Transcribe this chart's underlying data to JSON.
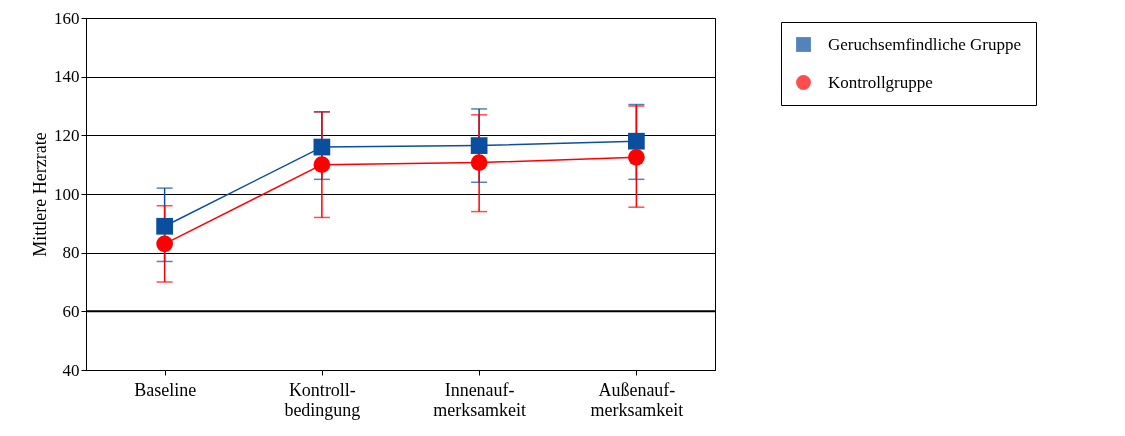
{
  "chart_data": {
    "type": "line",
    "ylabel": "Mittlere Herzrate",
    "categories": [
      "Baseline",
      "Kontroll-\nbedingung",
      "Innenauf-\nmerksamkeit",
      "Außenauf-\nmerksamkeit"
    ],
    "series": [
      {
        "name": "Geruchsemfindliche Gruppe",
        "color": "#0a4f9e",
        "marker": "square",
        "values": [
          89,
          116,
          116.5,
          118
        ],
        "errors": [
          [
            77,
            102
          ],
          [
            105,
            128
          ],
          [
            104,
            129
          ],
          [
            105,
            130.5
          ]
        ]
      },
      {
        "name": "Kontrollgruppe",
        "color": "#ff0000",
        "marker": "circle",
        "values": [
          83,
          110,
          110.7,
          112.5
        ],
        "errors": [
          [
            70,
            96
          ],
          [
            92,
            128
          ],
          [
            94,
            127
          ],
          [
            95.5,
            130
          ]
        ]
      }
    ],
    "ylim": [
      40,
      160
    ],
    "yticks": [
      40,
      60,
      80,
      100,
      120,
      140,
      160
    ],
    "grid": "y",
    "legend": "top right",
    "line_style": "solid",
    "ref_lines": [
      {
        "axis": "y",
        "value": 60,
        "color": "#000000"
      }
    ]
  }
}
